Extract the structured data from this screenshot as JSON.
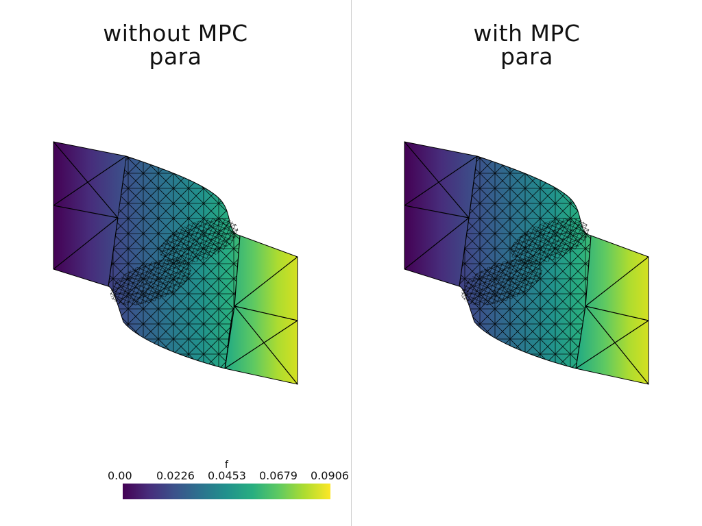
{
  "panels": [
    {
      "title_line1": "without MPC",
      "title_line2": "para"
    },
    {
      "title_line1": "with MPC",
      "title_line2": "para"
    }
  ],
  "colorbar": {
    "title": "f",
    "ticks": [
      "0.00",
      "0.0226",
      "0.0453",
      "0.0679",
      "0.0906"
    ],
    "colormap": "viridis",
    "min": 0.0,
    "max": 0.0906
  },
  "colors": {
    "viridis_low": "#440154",
    "viridis_mid": "#21918c",
    "viridis_high": "#fde725",
    "mesh_edges": "#000000"
  }
}
